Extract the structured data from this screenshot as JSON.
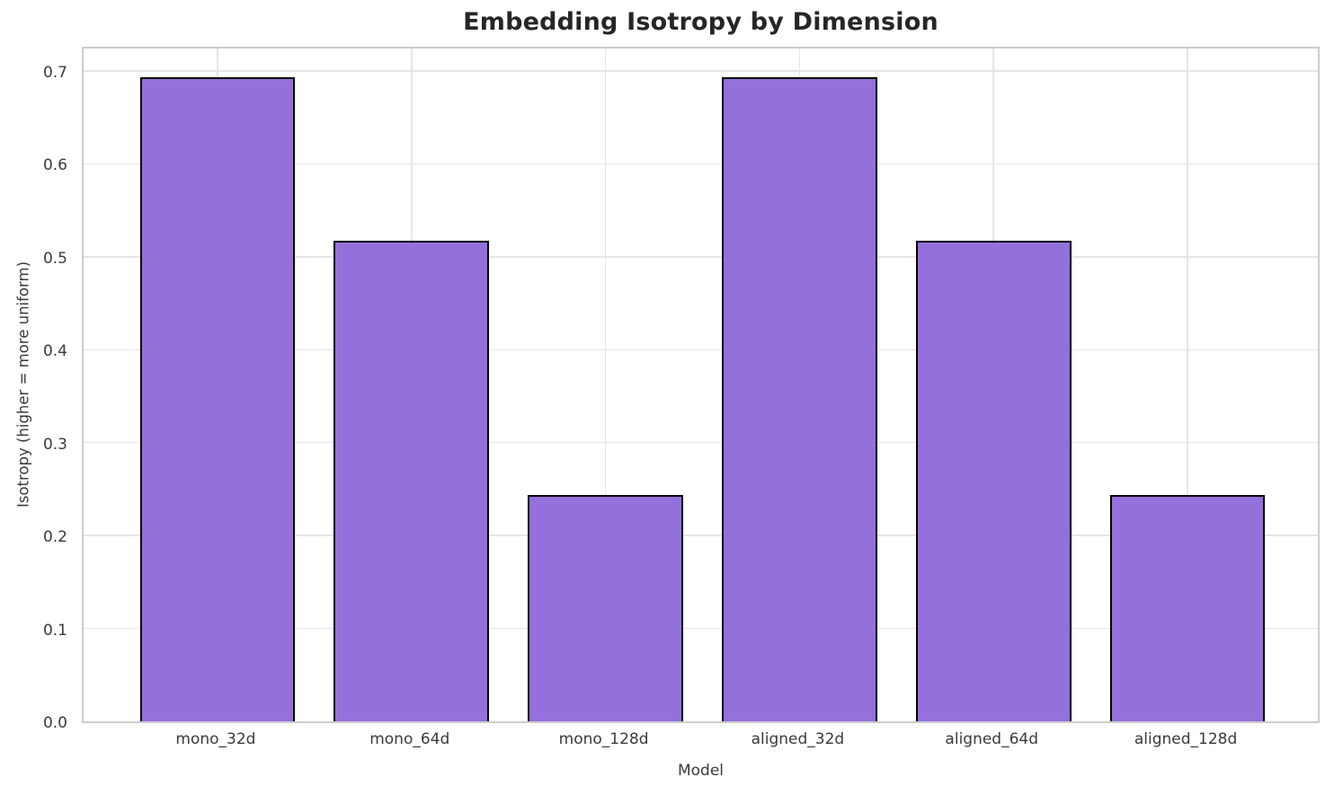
{
  "chart_data": {
    "type": "bar",
    "title": "Embedding Isotropy by Dimension",
    "xlabel": "Model",
    "ylabel": "Isotropy (higher = more uniform)",
    "categories": [
      "mono_32d",
      "mono_64d",
      "mono_128d",
      "aligned_32d",
      "aligned_64d",
      "aligned_128d"
    ],
    "values": [
      0.693,
      0.517,
      0.244,
      0.693,
      0.517,
      0.244
    ],
    "yticks": [
      0.0,
      0.1,
      0.2,
      0.3,
      0.4,
      0.5,
      0.6,
      0.7
    ],
    "ylim": [
      0,
      0.728
    ],
    "grid": true,
    "legend": "none",
    "colors": {
      "bar_fill": "#9370db",
      "bar_edge": "#000000",
      "grid": "#e5e5e5",
      "spine": "#cccccc",
      "tick_text": "#3a3a3a",
      "title_text": "#262626",
      "background": "#ffffff"
    }
  }
}
